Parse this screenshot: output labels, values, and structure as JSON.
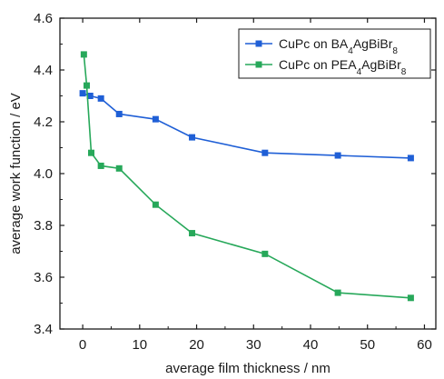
{
  "chart_data": {
    "type": "line",
    "xlabel": "average film thickness / nm",
    "ylabel": "average work function / eV",
    "xlim": [
      -4,
      62
    ],
    "ylim": [
      3.4,
      4.6
    ],
    "xticks": [
      0,
      10,
      20,
      30,
      40,
      50,
      60
    ],
    "yticks": [
      3.4,
      3.6,
      3.8,
      4.0,
      4.2,
      4.4,
      4.6
    ],
    "xtick_labels": [
      "0",
      "10",
      "20",
      "30",
      "40",
      "50",
      "60"
    ],
    "ytick_labels": [
      "3.4",
      "3.6",
      "3.8",
      "4.0",
      "4.2",
      "4.4",
      "4.6"
    ],
    "grid": false,
    "legend_position": "top-right",
    "series": [
      {
        "name": "CuPc on BA4AgBiBr8",
        "legend_parts": {
          "a": "CuPc on BA",
          "sub1": "4",
          "b": "AgBiBr",
          "sub2": "8"
        },
        "color": "#1f5fd6",
        "marker": "square",
        "x": [
          0,
          1.3,
          3.2,
          6.4,
          12.8,
          19.2,
          32,
          44.8,
          57.6
        ],
        "y": [
          4.31,
          4.3,
          4.29,
          4.23,
          4.21,
          4.14,
          4.08,
          4.07,
          4.06
        ]
      },
      {
        "name": "CuPc on PEA4AgBiBr8",
        "legend_parts": {
          "a": "CuPc on PEA",
          "sub1": "4",
          "b": "AgBiBr",
          "sub2": "8"
        },
        "color": "#27a85a",
        "marker": "square",
        "x": [
          0.2,
          0.7,
          1.5,
          3.2,
          6.4,
          12.8,
          19.2,
          32,
          44.8,
          57.6
        ],
        "y": [
          4.46,
          4.34,
          4.08,
          4.03,
          4.02,
          3.88,
          3.77,
          3.69,
          3.54,
          3.52
        ]
      }
    ]
  }
}
